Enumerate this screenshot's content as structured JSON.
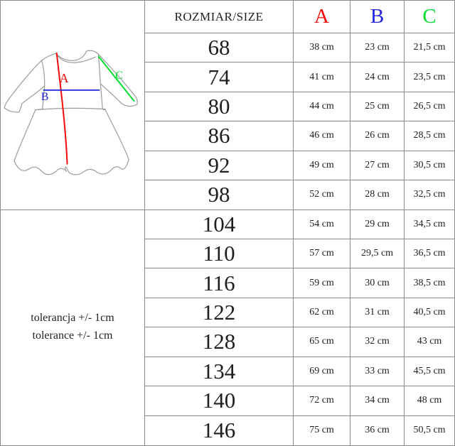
{
  "page": {
    "grid_color": "#8a8a8a",
    "background": "#ffffff"
  },
  "diagram": {
    "label_a": "A",
    "label_b": "B",
    "label_c": "C",
    "color_a": "#f40d0b",
    "color_b": "#2323dd",
    "color_c": "#00dd2c",
    "outline_color": "#9b9b9b"
  },
  "tolerance": {
    "line1": "tolerancja +/- 1cm",
    "line2": "tolerance +/- 1cm"
  },
  "table": {
    "header": {
      "size_label": "ROZMIAR/SIZE",
      "col_a": "A",
      "col_b": "B",
      "col_c": "C"
    },
    "rows": [
      {
        "size": "68",
        "a": "38 cm",
        "b": "23 cm",
        "c": "21,5 cm"
      },
      {
        "size": "74",
        "a": "41 cm",
        "b": "24 cm",
        "c": "23,5 cm"
      },
      {
        "size": "80",
        "a": "44 cm",
        "b": "25 cm",
        "c": "26,5 cm"
      },
      {
        "size": "86",
        "a": "46 cm",
        "b": "26 cm",
        "c": "28,5 cm"
      },
      {
        "size": "92",
        "a": "49 cm",
        "b": "27 cm",
        "c": "30,5 cm"
      },
      {
        "size": "98",
        "a": "52 cm",
        "b": "28 cm",
        "c": "32,5 cm"
      },
      {
        "size": "104",
        "a": "54 cm",
        "b": "29 cm",
        "c": "34,5 cm"
      },
      {
        "size": "110",
        "a": "57 cm",
        "b": "29,5 cm",
        "c": "36,5 cm"
      },
      {
        "size": "116",
        "a": "59 cm",
        "b": "30 cm",
        "c": "38,5 cm"
      },
      {
        "size": "122",
        "a": "62 cm",
        "b": "31 cm",
        "c": "40,5 cm"
      },
      {
        "size": "128",
        "a": "65 cm",
        "b": "32 cm",
        "c": "43 cm"
      },
      {
        "size": "134",
        "a": "69 cm",
        "b": "33 cm",
        "c": "45,5 cm"
      },
      {
        "size": "140",
        "a": "72 cm",
        "b": "34 cm",
        "c": "48 cm"
      },
      {
        "size": "146",
        "a": "75 cm",
        "b": "36 cm",
        "c": "50,5 cm"
      }
    ]
  },
  "chart_data": {
    "type": "table",
    "title": "ROZMIAR/SIZE",
    "columns": [
      "ROZMIAR/SIZE",
      "A",
      "B",
      "C"
    ],
    "rows": [
      [
        "68",
        "38 cm",
        "23 cm",
        "21,5 cm"
      ],
      [
        "74",
        "41 cm",
        "24 cm",
        "23,5 cm"
      ],
      [
        "80",
        "44 cm",
        "25 cm",
        "26,5 cm"
      ],
      [
        "86",
        "46 cm",
        "26 cm",
        "28,5 cm"
      ],
      [
        "92",
        "49 cm",
        "27 cm",
        "30,5 cm"
      ],
      [
        "98",
        "52 cm",
        "28 cm",
        "32,5 cm"
      ],
      [
        "104",
        "54 cm",
        "29 cm",
        "34,5 cm"
      ],
      [
        "110",
        "57 cm",
        "29,5 cm",
        "36,5 cm"
      ],
      [
        "116",
        "59 cm",
        "30 cm",
        "38,5 cm"
      ],
      [
        "122",
        "62 cm",
        "31 cm",
        "40,5 cm"
      ],
      [
        "128",
        "65 cm",
        "32 cm",
        "43 cm"
      ],
      [
        "134",
        "69 cm",
        "33 cm",
        "45,5 cm"
      ],
      [
        "140",
        "72 cm",
        "34 cm",
        "48 cm"
      ],
      [
        "146",
        "75 cm",
        "36 cm",
        "50,5 cm"
      ]
    ],
    "column_colors": {
      "A": "#f40d0b",
      "B": "#2323dd",
      "C": "#00dd2c"
    },
    "notes": [
      "tolerancja +/- 1cm",
      "tolerance +/- 1cm"
    ]
  }
}
